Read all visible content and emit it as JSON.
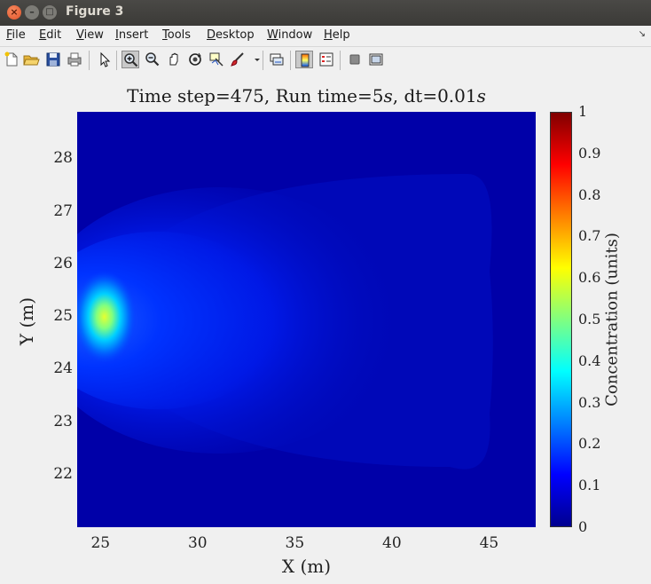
{
  "window": {
    "title": "Figure 3"
  },
  "menu": {
    "items": [
      {
        "name": "file",
        "mnemonic": "F",
        "rest": "ile"
      },
      {
        "name": "edit",
        "mnemonic": "E",
        "rest": "dit"
      },
      {
        "name": "view",
        "mnemonic": "V",
        "rest": "iew"
      },
      {
        "name": "insert",
        "mnemonic": "I",
        "rest": "nsert"
      },
      {
        "name": "tools",
        "mnemonic": "T",
        "rest": "ools"
      },
      {
        "name": "desktop",
        "mnemonic": "D",
        "rest": "esktop"
      },
      {
        "name": "window",
        "mnemonic": "W",
        "rest": "indow"
      },
      {
        "name": "help",
        "mnemonic": "H",
        "rest": "elp"
      }
    ]
  },
  "toolbar": {
    "icons": [
      "new-figure-icon",
      "open-file-icon",
      "save-icon",
      "print-icon",
      "pointer-icon",
      "zoom-in-icon",
      "zoom-out-icon",
      "pan-icon",
      "rotate-3d-icon",
      "data-cursor-icon",
      "brush-icon",
      "link-plot-icon",
      "colorbar-icon",
      "legend-icon",
      "hide-plot-tools-icon",
      "show-plot-tools-icon"
    ]
  },
  "plot": {
    "title_prefix": "Time step=475, Run time=5",
    "title_s1": "s",
    "title_mid": ", dt=0.01",
    "title_s2": "s",
    "xlabel": "X (m)",
    "ylabel": "Y (m)",
    "colorbar_label": "Concentration (units)"
  },
  "chart_data": {
    "type": "heatmap",
    "title": "Time step=475, Run time=5s, dt=0.01s",
    "xlabel": "X (m)",
    "ylabel": "Y (m)",
    "xlim": [
      23.8,
      47.4
    ],
    "ylim": [
      21.0,
      28.9
    ],
    "xticks": [
      25,
      30,
      35,
      40,
      45
    ],
    "yticks": [
      22,
      23,
      24,
      25,
      26,
      27,
      28
    ],
    "colormap": "jet",
    "clim": [
      0,
      1
    ],
    "colorbar_ticks": [
      0,
      0.1,
      0.2,
      0.3,
      0.4,
      0.5,
      0.6,
      0.7,
      0.8,
      0.9,
      1
    ],
    "colorbar_label": "Concentration (units)",
    "source_peak": {
      "x": 25.2,
      "y": 25.0,
      "value": 0.57
    },
    "plume_extent": {
      "x": [
        24.3,
        45.5
      ],
      "y": [
        22.4,
        27.8
      ]
    }
  }
}
